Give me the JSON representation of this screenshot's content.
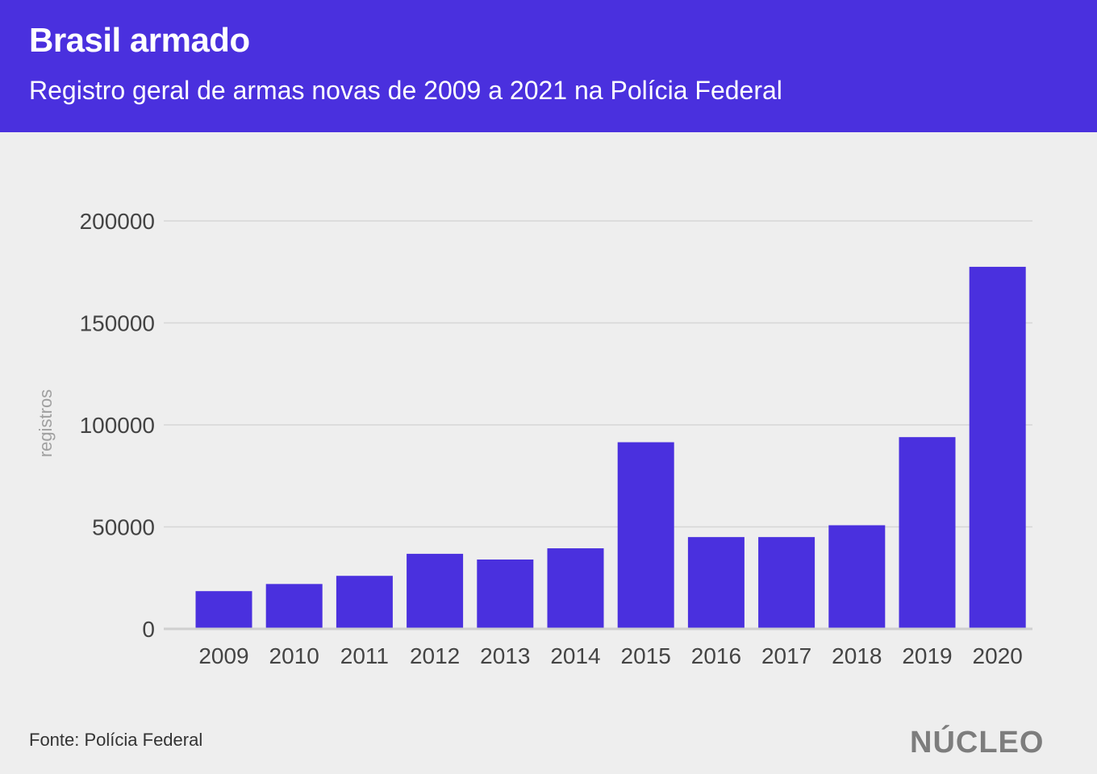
{
  "header": {
    "title": "Brasil armado",
    "subtitle": "Registro geral de armas novas de 2009 a 2021 na Polícia Federal"
  },
  "footer": {
    "source": "Fonte: Polícia Federal",
    "logo": "NÚCLEO"
  },
  "colors": {
    "header_bg": "#4a30de",
    "bar": "#4a30de",
    "background": "#eeeeee"
  },
  "chart_data": {
    "type": "bar",
    "title": "Brasil armado",
    "subtitle": "Registro geral de armas novas de 2009 a 2021 na Polícia Federal",
    "xlabel": "",
    "ylabel": "registros",
    "categories": [
      "2009",
      "2010",
      "2011",
      "2012",
      "2013",
      "2014",
      "2015",
      "2016",
      "2017",
      "2018",
      "2019",
      "2020"
    ],
    "values": [
      18500,
      22000,
      26000,
      36800,
      34000,
      39500,
      91500,
      45000,
      45000,
      50800,
      94000,
      177500
    ],
    "ylim": [
      0,
      200000
    ],
    "yticks": [
      0,
      50000,
      100000,
      150000,
      200000
    ],
    "ytick_labels": [
      "0",
      "50000",
      "100000",
      "150000",
      "200000"
    ],
    "grid": true
  }
}
